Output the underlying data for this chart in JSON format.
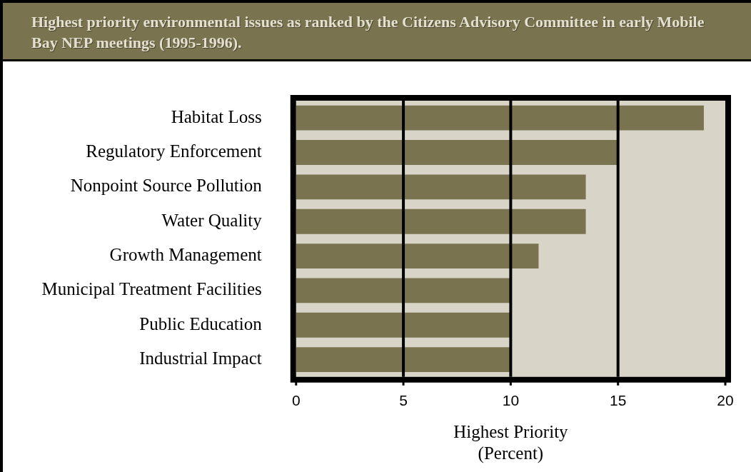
{
  "chart_data": {
    "type": "bar",
    "orientation": "horizontal",
    "title": "Highest priority environmental issues as ranked by the Citizens Advisory Committee in early Mobile Bay NEP meetings (1995-1996).",
    "categories": [
      "Habitat Loss",
      "Regulatory Enforcement",
      "Nonpoint Source Pollution",
      "Water Quality",
      "Growth Management",
      "Municipal Treatment Facilities",
      "Public Education",
      "Industrial Impact"
    ],
    "values": [
      19,
      15,
      13.5,
      13.5,
      11.3,
      10,
      10,
      10
    ],
    "color": "#7a7350",
    "xlabel": "Highest Priority\n(Percent)",
    "xlim": [
      0,
      20
    ],
    "xticks": [
      0,
      5,
      10,
      15,
      20
    ],
    "grid": "x",
    "legend": false
  }
}
